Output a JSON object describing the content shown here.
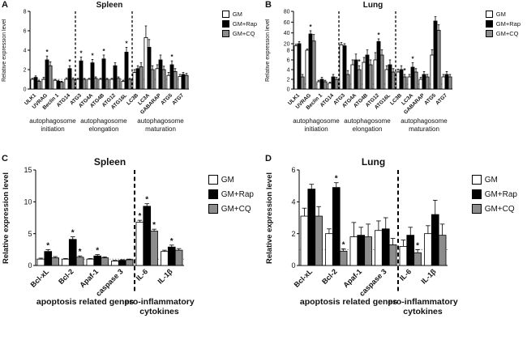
{
  "legend": {
    "items": [
      {
        "label": "GM",
        "color": "#ffffff"
      },
      {
        "label": "GM+Rap",
        "color": "#000000"
      },
      {
        "label": "GM+CQ",
        "color": "#8c8c8c"
      }
    ]
  },
  "panels": [
    {
      "letter": "A",
      "title": "Spleen",
      "ylabel": "Relative expression level"
    },
    {
      "letter": "B",
      "title": "Lung",
      "ylabel": "Relative expression level"
    },
    {
      "letter": "C",
      "title": "Spleen",
      "ylabel": "Relative expression level"
    },
    {
      "letter": "D",
      "title": "Lung",
      "ylabel": "Relative expression level"
    }
  ],
  "chart_data": [
    {
      "type": "bar",
      "panel": "A",
      "title": "Spleen",
      "ylabel": "Relative expression level",
      "categories": [
        "ULK1",
        "UVRAG",
        "Beclin 1",
        "ATG14",
        "ATG3",
        "ATG4A",
        "ATG4B",
        "ATG12",
        "ATG16L",
        "LC3B",
        "LC3A",
        "GABARAP",
        "ATG5",
        "ATG7"
      ],
      "y": {
        "segments": [
          {
            "min": 0,
            "max": 8,
            "frac": 1,
            "ticks": [
              0,
              2,
              4,
              6,
              8
            ]
          }
        ]
      },
      "baseline": 1,
      "separators": [
        4,
        9
      ],
      "groups": [
        {
          "lines": [
            "autophagosome",
            "initiation"
          ],
          "from": 0,
          "to": 3
        },
        {
          "lines": [
            "autophagosome",
            "elongation"
          ],
          "from": 4,
          "to": 8
        },
        {
          "lines": [
            "autophagosome",
            "maturation"
          ],
          "from": 9,
          "to": 13
        }
      ],
      "series": [
        {
          "name": "GM",
          "color": "#ffffff",
          "values": [
            1.0,
            1.0,
            0.9,
            1.0,
            1.0,
            1.0,
            1.0,
            1.0,
            0.8,
            1.7,
            5.3,
            2.1,
            1.4,
            1.3
          ],
          "errors": [
            0.1,
            0.2,
            0.1,
            0.15,
            0.1,
            0.1,
            0.1,
            0.1,
            0.1,
            0.3,
            1.2,
            0.4,
            0.3,
            0.2
          ],
          "sig": [
            "",
            "",
            "",
            "",
            "",
            "",
            "",
            "",
            "",
            "",
            "",
            "",
            "",
            ""
          ]
        },
        {
          "name": "GM+Rap",
          "color": "#000000",
          "values": [
            1.2,
            3.0,
            0.8,
            2.1,
            2.9,
            2.7,
            3.1,
            2.4,
            3.8,
            2.1,
            4.3,
            3.0,
            2.5,
            1.5
          ],
          "errors": [
            0.15,
            0.4,
            0.1,
            0.3,
            0.4,
            0.35,
            0.4,
            0.3,
            0.5,
            0.3,
            0.8,
            0.5,
            0.4,
            0.2
          ],
          "sig": [
            "",
            "*",
            "",
            "*",
            "*",
            "*",
            "*",
            "",
            "*",
            "",
            "",
            "",
            "*",
            ""
          ]
        },
        {
          "name": "GM+CQ",
          "color": "#8c8c8c",
          "values": [
            0.8,
            2.4,
            0.7,
            1.0,
            1.0,
            1.1,
            1.0,
            1.1,
            1.0,
            2.3,
            2.0,
            2.0,
            1.8,
            1.4
          ],
          "errors": [
            0.1,
            0.4,
            0.1,
            0.15,
            0.1,
            0.15,
            0.1,
            0.15,
            0.1,
            0.4,
            0.4,
            0.35,
            0.3,
            0.2
          ],
          "sig": [
            "",
            "",
            "",
            "",
            "",
            "",
            "",
            "",
            "",
            "",
            "",
            "",
            "",
            ""
          ]
        }
      ]
    },
    {
      "type": "bar",
      "panel": "B",
      "title": "Lung",
      "ylabel": "Relative expression level",
      "categories": [
        "ULK1",
        "UVRAG",
        "Beclin 1",
        "ATG14",
        "ATG3",
        "ATG4A",
        "ATG4B",
        "ATG12",
        "ATG16L",
        "LC3B",
        "LC3A",
        "GABARAP",
        "ATG5",
        "ATG7"
      ],
      "y": {
        "segments": [
          {
            "min": 0,
            "max": 8,
            "frac": 0.5,
            "ticks": [
              0,
              2,
              4,
              6,
              8
            ]
          },
          {
            "min": 8,
            "max": 80,
            "frac": 0.5,
            "ticks": [
              20,
              40,
              60,
              80
            ]
          }
        ]
      },
      "baseline": 1,
      "separators": [
        4,
        9
      ],
      "groups": [
        {
          "lines": [
            "autophagosome",
            "initiation"
          ],
          "from": 0,
          "to": 3
        },
        {
          "lines": [
            "autophagosome",
            "elongation"
          ],
          "from": 4,
          "to": 8
        },
        {
          "lines": [
            "autophagosome",
            "maturation"
          ],
          "from": 9,
          "to": 13
        }
      ],
      "series": [
        {
          "name": "GM",
          "color": "#ffffff",
          "values": [
            16,
            8,
            1.5,
            1.2,
            18,
            5,
            5.5,
            6,
            4,
            3.5,
            2.5,
            2,
            7,
            2.5
          ],
          "errors": [
            3,
            2,
            0.3,
            0.2,
            4,
            1,
            1,
            1.5,
            0.8,
            0.6,
            0.5,
            0.4,
            2,
            0.5
          ],
          "sig": [
            "",
            "",
            "",
            "",
            "",
            "",
            "",
            "",
            "",
            "",
            "",
            "",
            "",
            ""
          ]
        },
        {
          "name": "GM+Rap",
          "color": "#000000",
          "values": [
            20,
            38,
            2.0,
            2.5,
            16,
            6,
            7,
            24,
            5,
            4,
            4.5,
            3,
            62,
            3
          ],
          "errors": [
            4,
            6,
            0.4,
            0.5,
            4,
            1.2,
            1.5,
            5,
            1,
            0.8,
            0.9,
            0.6,
            8,
            0.6
          ],
          "sig": [
            "",
            "*",
            "",
            "",
            "",
            "",
            "",
            "*",
            "",
            "",
            "*",
            "",
            "",
            ""
          ]
        },
        {
          "name": "GM+CQ",
          "color": "#8c8c8c",
          "values": [
            2.5,
            25,
            1.5,
            2.0,
            3,
            4,
            5,
            7,
            3.5,
            2.5,
            3.5,
            2.5,
            45,
            2.5
          ],
          "errors": [
            0.5,
            12,
            0.3,
            0.4,
            0.8,
            0.8,
            1,
            1.5,
            0.7,
            0.5,
            0.7,
            0.5,
            10,
            0.5
          ],
          "sig": [
            "",
            "",
            "",
            "",
            "",
            "*",
            "",
            "",
            "",
            "*",
            "",
            "",
            "",
            ""
          ]
        }
      ]
    },
    {
      "type": "bar",
      "panel": "C",
      "title": "Spleen",
      "ylabel": "Relative expression level",
      "categories": [
        "Bcl-xL",
        "Bcl-2",
        "Apaf-1",
        "caspase 3",
        "IL-6",
        "IL-1β"
      ],
      "y": {
        "segments": [
          {
            "min": 0,
            "max": 15,
            "frac": 1,
            "ticks": [
              0,
              5,
              10,
              15
            ]
          }
        ]
      },
      "baseline": 1,
      "separators": [
        4
      ],
      "groups": [
        {
          "lines": [
            "apoptosis related genes"
          ],
          "from": 0,
          "to": 3
        },
        {
          "lines": [
            "pro-inflammatory",
            "cytokines"
          ],
          "from": 4,
          "to": 5
        }
      ],
      "series": [
        {
          "name": "GM",
          "color": "#ffffff",
          "values": [
            1.0,
            1.0,
            1.0,
            0.7,
            6.8,
            2.2
          ],
          "errors": [
            0.15,
            0.1,
            0.1,
            0.1,
            0.3,
            0.2
          ],
          "sig": [
            "",
            "",
            "",
            "",
            "*",
            ""
          ]
        },
        {
          "name": "GM+Rap",
          "color": "#000000",
          "values": [
            2.2,
            4.1,
            1.5,
            0.8,
            9.3,
            2.9
          ],
          "errors": [
            0.3,
            0.4,
            0.2,
            0.1,
            0.4,
            0.3
          ],
          "sig": [
            "*",
            "*",
            "*",
            "",
            "*",
            "*"
          ]
        },
        {
          "name": "GM+CQ",
          "color": "#8c8c8c",
          "values": [
            1.2,
            1.3,
            1.2,
            0.9,
            5.4,
            2.4
          ],
          "errors": [
            0.2,
            0.2,
            0.15,
            0.1,
            0.3,
            0.25
          ],
          "sig": [
            "",
            "*",
            "",
            "",
            "*",
            ""
          ]
        }
      ]
    },
    {
      "type": "bar",
      "panel": "D",
      "title": "Lung",
      "ylabel": "Relative expression level",
      "categories": [
        "Bcl-xL",
        "Bcl-2",
        "Apaf-1",
        "caspase 3",
        "IL-6",
        "IL-1β"
      ],
      "y": {
        "segments": [
          {
            "min": 0,
            "max": 6,
            "frac": 1,
            "ticks": [
              0,
              2,
              4,
              6
            ]
          }
        ]
      },
      "baseline": 1,
      "separators": [
        4
      ],
      "groups": [
        {
          "lines": [
            "apoptosis related genes"
          ],
          "from": 0,
          "to": 3
        },
        {
          "lines": [
            "pro-inflammatory",
            "cytokines"
          ],
          "from": 4,
          "to": 5
        }
      ],
      "series": [
        {
          "name": "GM",
          "color": "#ffffff",
          "values": [
            3.1,
            2.0,
            1.8,
            2.2,
            1.2,
            2.0
          ],
          "errors": [
            0.5,
            0.3,
            0.9,
            0.6,
            0.4,
            0.5
          ],
          "sig": [
            "",
            "",
            "",
            "",
            "",
            ""
          ]
        },
        {
          "name": "GM+Rap",
          "color": "#000000",
          "values": [
            4.8,
            4.9,
            1.9,
            2.3,
            1.9,
            3.2
          ],
          "errors": [
            0.3,
            0.3,
            0.5,
            0.7,
            0.5,
            0.9
          ],
          "sig": [
            "",
            "*",
            "",
            "",
            "",
            ""
          ]
        },
        {
          "name": "GM+CQ",
          "color": "#8c8c8c",
          "values": [
            3.1,
            0.9,
            1.8,
            1.3,
            0.8,
            1.9
          ],
          "errors": [
            0.6,
            0.15,
            0.8,
            0.4,
            0.2,
            0.7
          ],
          "sig": [
            "",
            "*",
            "",
            "",
            "*",
            ""
          ]
        }
      ]
    }
  ]
}
